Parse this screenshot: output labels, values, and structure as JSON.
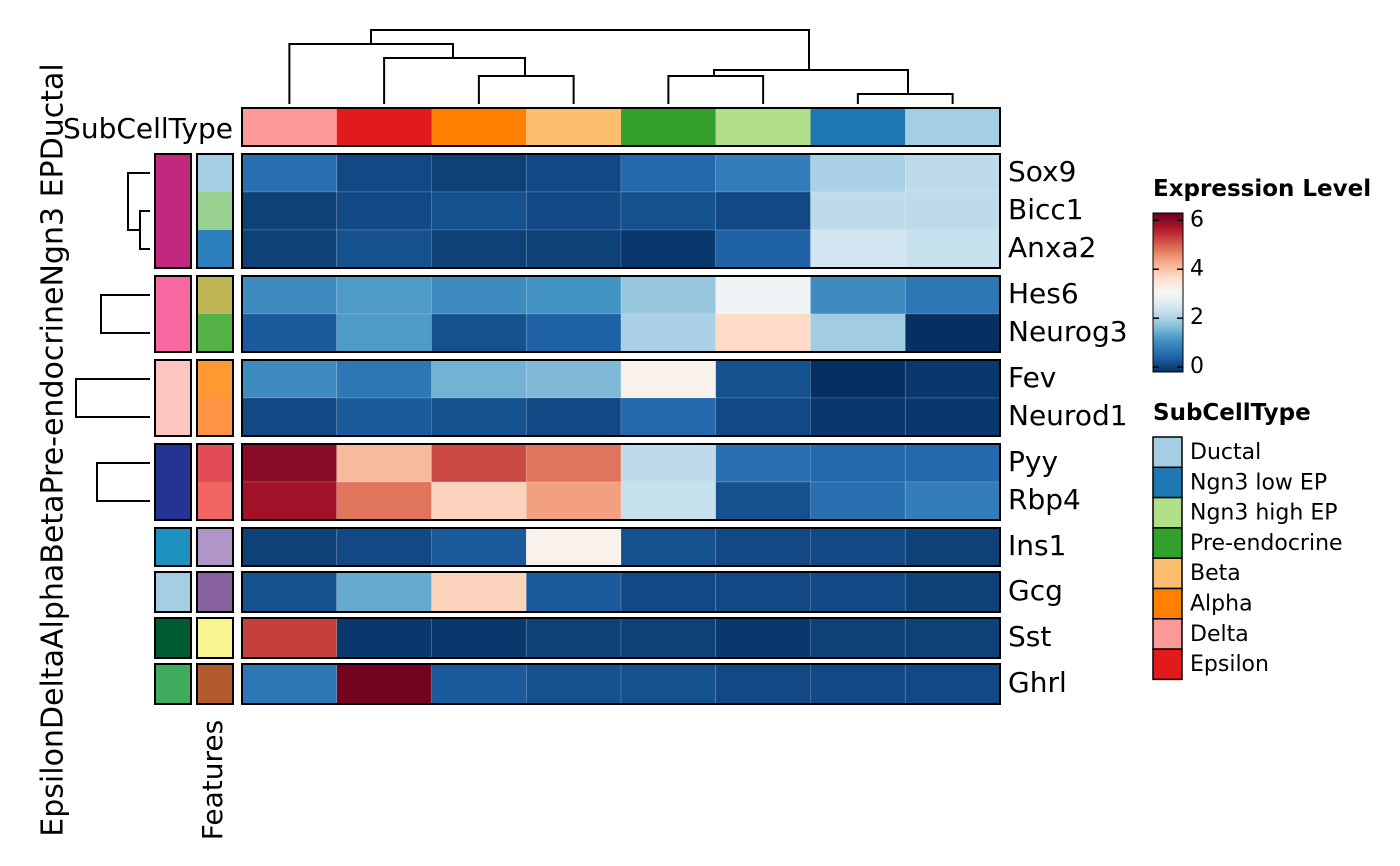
{
  "chart_data": {
    "type": "heatmap",
    "columns": [
      "Delta",
      "Epsilon",
      "Alpha",
      "Beta",
      "Pre-endocrine",
      "Ngn3 high EP",
      "Ngn3 low EP",
      "Ductal"
    ],
    "column_annotation": {
      "title": "SubCellType",
      "colors": [
        "#FB9A99",
        "#E31A1C",
        "#FF7F00",
        "#FDBF6F",
        "#33A02C",
        "#B2DF8A",
        "#1F78B4",
        "#A6CEE3"
      ]
    },
    "row_groups": [
      {
        "name": "Ductal",
        "color": "#C2297E",
        "rows": [
          {
            "gene": "Sox9",
            "feature_color": "#A6CEE3",
            "values": [
              0.6,
              0.1,
              0.0,
              0.1,
              0.5,
              0.8,
              2.0,
              2.2
            ]
          },
          {
            "gene": "Bicc1",
            "feature_color": "#98D08F",
            "values": [
              0.0,
              0.1,
              0.2,
              0.1,
              0.2,
              0.1,
              2.2,
              2.2
            ]
          },
          {
            "gene": "Anxa2",
            "feature_color": "#2B7FBA",
            "values": [
              0.0,
              0.2,
              0.0,
              0.0,
              -0.1,
              0.4,
              2.4,
              2.3
            ]
          }
        ]
      },
      {
        "name": "Ngn3 EP",
        "color": "#F768A1",
        "rows": [
          {
            "gene": "Hes6",
            "feature_color": "#BEB655",
            "values": [
              1.0,
              1.2,
              1.0,
              1.1,
              1.8,
              2.9,
              1.0,
              0.7
            ]
          },
          {
            "gene": "Neurog3",
            "feature_color": "#53B146",
            "values": [
              0.3,
              1.2,
              0.2,
              0.4,
              2.0,
              3.7,
              1.9,
              -0.2
            ]
          }
        ]
      },
      {
        "name": "Pre-endocrine",
        "color": "#FCC5C0",
        "rows": [
          {
            "gene": "Fev",
            "feature_color": "#FE9A31",
            "values": [
              1.0,
              0.7,
              1.5,
              1.6,
              3.2,
              0.2,
              -0.2,
              -0.1
            ]
          },
          {
            "gene": "Neurod1",
            "feature_color": "#FE9346",
            "values": [
              0.1,
              0.3,
              0.2,
              0.1,
              0.5,
              0.1,
              -0.1,
              -0.1
            ]
          }
        ]
      },
      {
        "name": "Beta",
        "color": "#253494",
        "rows": [
          {
            "gene": "Pyy",
            "feature_color": "#E24C59",
            "values": [
              6.0,
              4.1,
              5.2,
              4.8,
              2.2,
              0.6,
              0.5,
              0.5
            ]
          },
          {
            "gene": "Rbp4",
            "feature_color": "#F26462",
            "values": [
              5.8,
              4.8,
              3.8,
              4.4,
              2.3,
              0.2,
              0.6,
              0.8
            ]
          }
        ]
      },
      {
        "name": "Alpha",
        "color": "#1D91C0",
        "rows": [
          {
            "gene": "Ins1",
            "feature_color": "#B096C8",
            "values": [
              0.0,
              0.1,
              0.3,
              3.2,
              0.2,
              0.1,
              0.1,
              0.0
            ]
          }
        ]
      },
      {
        "name": "Delta",
        "color": "#A6CEE3",
        "rows": [
          {
            "gene": "Gcg",
            "feature_color": "#86609F",
            "values": [
              0.2,
              1.4,
              3.8,
              0.3,
              0.1,
              0.1,
              0.1,
              0.0
            ]
          }
        ]
      },
      {
        "name": "Epsilon",
        "color": "#005A32",
        "rows": [
          {
            "gene": "Sst",
            "feature_color": "#F7F491",
            "values": [
              5.3,
              -0.1,
              -0.1,
              0.0,
              0.0,
              -0.1,
              0.0,
              0.0
            ]
          }
        ]
      },
      {
        "name": "",
        "color": "#41AB5D",
        "rows": [
          {
            "gene": "Ghrl",
            "feature_color": "#B05A2E",
            "values": [
              0.7,
              6.2,
              0.3,
              0.2,
              0.2,
              0.1,
              0.1,
              0.1
            ]
          }
        ]
      }
    ],
    "row_group_label_text": "EpsilonDeltaAlphaBetaPre-endocrineNgn3 EPDuctal",
    "features_label": "Features",
    "legend_expression": {
      "title": "Expression Level",
      "min": -0.2,
      "max": 6.3,
      "ticks": [
        "0",
        "2",
        "4",
        "6"
      ],
      "tick_values": [
        0,
        2,
        4,
        6
      ],
      "colors": [
        "#053061",
        "#2166AC",
        "#4393C3",
        "#92C5DE",
        "#D1E5F0",
        "#F7F7F7",
        "#FDDBC7",
        "#F4A582",
        "#D6604D",
        "#B2182B",
        "#67001F"
      ]
    },
    "legend_subcelltype": {
      "title": "SubCellType",
      "items": [
        {
          "label": "Ductal",
          "color": "#A6CEE3"
        },
        {
          "label": "Ngn3 low EP",
          "color": "#1F78B4"
        },
        {
          "label": "Ngn3 high EP",
          "color": "#B2DF8A"
        },
        {
          "label": "Pre-endocrine",
          "color": "#33A02C"
        },
        {
          "label": "Beta",
          "color": "#FDBF6F"
        },
        {
          "label": "Alpha",
          "color": "#FF7F00"
        },
        {
          "label": "Delta",
          "color": "#FB9A99"
        },
        {
          "label": "Epsilon",
          "color": "#E31A1C"
        }
      ]
    },
    "column_dendrogram": {
      "merges": [
        [
          1,
          2
        ],
        [
          3,
          4
        ],
        [
          2,
          3
        ],
        [
          -1,
          0
        ],
        [
          5,
          4
        ],
        [
          -2,
          1
        ],
        [
          -3,
          5
        ]
      ]
    },
    "column_dendrogram_merges_note": ""
  }
}
